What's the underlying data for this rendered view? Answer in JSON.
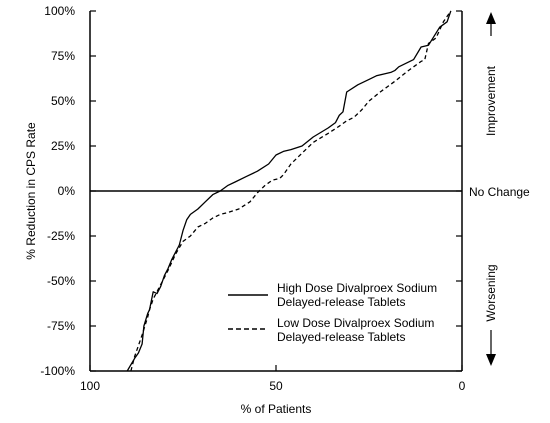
{
  "chart_data": {
    "type": "line",
    "title": "",
    "xlabel": "% of Patients",
    "ylabel": "% Reduction in CPS Rate",
    "x_reversed": true,
    "xlim": [
      100,
      0
    ],
    "ylim": [
      -100,
      100
    ],
    "x_ticks": [
      100,
      50,
      0
    ],
    "x_tick_labels": [
      "100",
      "50",
      "0"
    ],
    "y_ticks": [
      100,
      75,
      50,
      25,
      0,
      -25,
      -50,
      -75,
      -100
    ],
    "y_tick_labels": [
      "100%",
      "75%",
      "50%",
      "25%",
      "0%",
      "-25%",
      "-50%",
      "-75%",
      "-100%"
    ],
    "zero_line_label": "No Change",
    "side_labels": {
      "top": "Improvement",
      "bottom": "Worsening"
    },
    "legend_position": "lower-right",
    "series": [
      {
        "name": "High Dose Divalproex Sodium Delayed-release Tablets",
        "style": "solid",
        "x": [
          90,
          88,
          87,
          86,
          85.5,
          84.5,
          84,
          83,
          82,
          81,
          80,
          79,
          78,
          76,
          75,
          74,
          73,
          71,
          69,
          67,
          65,
          63,
          61,
          58,
          55,
          52,
          50,
          48,
          46,
          43,
          40,
          36,
          34,
          33,
          32,
          31,
          28,
          25,
          23,
          21,
          19,
          18,
          17,
          15,
          13,
          11,
          9,
          6,
          4,
          3
        ],
        "y": [
          -100,
          -93,
          -90,
          -85,
          -75,
          -68,
          -66,
          -56,
          -57,
          -53,
          -47,
          -43,
          -38,
          -30,
          -22,
          -16,
          -13,
          -10,
          -6,
          -2,
          0,
          3,
          5,
          8,
          11,
          15,
          20,
          22,
          23,
          25,
          30,
          35,
          38,
          42,
          44,
          55,
          59,
          62,
          64,
          65,
          66,
          67,
          69,
          71,
          73,
          80,
          81,
          91,
          94,
          100
        ]
      },
      {
        "name": "Low Dose Divalproex Sodium Delayed-release Tablets",
        "style": "dashed",
        "x": [
          89,
          88,
          86,
          84.5,
          84,
          83,
          81,
          79,
          77,
          75,
          73,
          71,
          69,
          67,
          65,
          63,
          60,
          57,
          55,
          53,
          51,
          49,
          48,
          46,
          43,
          40,
          36,
          33,
          31,
          29,
          27,
          25,
          22,
          20,
          18,
          15,
          13,
          11,
          10,
          9,
          7,
          5,
          3
        ],
        "y": [
          -100,
          -92,
          -80,
          -70,
          -66,
          -60,
          -52,
          -44,
          -35,
          -28,
          -25,
          -20,
          -18,
          -15,
          -13,
          -12,
          -10,
          -6,
          -1,
          3,
          6,
          7,
          9,
          15,
          21,
          27,
          32,
          36,
          39,
          41,
          45,
          50,
          55,
          58,
          61,
          66,
          69,
          72,
          73,
          82,
          85,
          94,
          100
        ]
      }
    ]
  }
}
